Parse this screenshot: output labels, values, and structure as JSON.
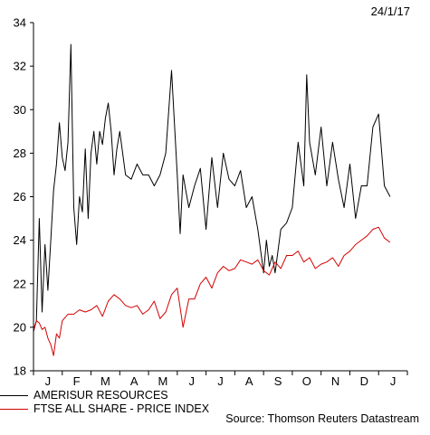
{
  "date_label": "24/1/17",
  "source": "Source: Thomson Reuters Datastream",
  "chart_data": {
    "type": "line",
    "ylim": [
      18,
      34
    ],
    "yticks": [
      18,
      20,
      22,
      24,
      26,
      28,
      30,
      32,
      34
    ],
    "x_months": [
      "J",
      "F",
      "M",
      "A",
      "M",
      "J",
      "J",
      "A",
      "S",
      "O",
      "N",
      "D",
      "J"
    ],
    "legend_placement": "bottom-left",
    "grid": false,
    "series": [
      {
        "name": "AMERISUR RESOURCES",
        "color": "#000000",
        "x": [
          0.0,
          0.1,
          0.2,
          0.3,
          0.4,
          0.5,
          0.6,
          0.7,
          0.8,
          0.9,
          1.0,
          1.1,
          1.2,
          1.3,
          1.4,
          1.5,
          1.6,
          1.7,
          1.8,
          1.9,
          2.0,
          2.1,
          2.2,
          2.3,
          2.4,
          2.5,
          2.6,
          2.7,
          2.8,
          2.9,
          3.0,
          3.2,
          3.4,
          3.6,
          3.8,
          4.0,
          4.2,
          4.4,
          4.6,
          4.8,
          5.0,
          5.1,
          5.2,
          5.4,
          5.6,
          5.8,
          6.0,
          6.2,
          6.4,
          6.6,
          6.8,
          7.0,
          7.2,
          7.4,
          7.6,
          7.8,
          8.0,
          8.1,
          8.2,
          8.3,
          8.4,
          8.6,
          8.8,
          9.0,
          9.2,
          9.4,
          9.5,
          9.6,
          9.8,
          10.0,
          10.2,
          10.4,
          10.6,
          10.8,
          11.0,
          11.2,
          11.4,
          11.6,
          11.8,
          12.0,
          12.2,
          12.4
        ],
        "values": [
          19.8,
          20.3,
          25.0,
          20.7,
          23.8,
          21.7,
          24.0,
          26.3,
          27.5,
          29.4,
          27.8,
          27.2,
          28.5,
          33.0,
          25.5,
          23.8,
          26.0,
          25.3,
          28.2,
          25.0,
          28.0,
          29.0,
          27.5,
          29.0,
          28.4,
          29.6,
          30.3,
          29.0,
          27.0,
          28.2,
          29.0,
          27.0,
          26.8,
          27.5,
          27.0,
          27.0,
          26.5,
          27.0,
          28.0,
          31.8,
          27.0,
          24.3,
          27.0,
          25.5,
          26.5,
          27.3,
          24.5,
          27.8,
          25.5,
          28.0,
          26.8,
          26.5,
          27.2,
          25.5,
          26.0,
          24.5,
          22.5,
          24.0,
          22.8,
          23.3,
          22.5,
          24.5,
          24.8,
          25.5,
          28.5,
          26.5,
          31.6,
          28.5,
          27.0,
          29.2,
          26.5,
          28.5,
          26.8,
          25.5,
          27.5,
          25.0,
          26.5,
          26.5,
          29.2,
          29.8,
          26.5,
          26.0
        ]
      },
      {
        "name": "FTSE ALL SHARE - PRICE INDEX",
        "color": "#d40000",
        "x": [
          0.0,
          0.1,
          0.2,
          0.3,
          0.4,
          0.5,
          0.6,
          0.7,
          0.8,
          0.9,
          1.0,
          1.2,
          1.4,
          1.6,
          1.8,
          2.0,
          2.2,
          2.4,
          2.6,
          2.8,
          3.0,
          3.2,
          3.4,
          3.6,
          3.8,
          4.0,
          4.2,
          4.4,
          4.6,
          4.8,
          5.0,
          5.2,
          5.4,
          5.6,
          5.8,
          6.0,
          6.2,
          6.4,
          6.6,
          6.8,
          7.0,
          7.2,
          7.4,
          7.6,
          7.8,
          8.0,
          8.2,
          8.4,
          8.6,
          8.8,
          9.0,
          9.2,
          9.4,
          9.6,
          9.8,
          10.0,
          10.2,
          10.4,
          10.6,
          10.8,
          11.0,
          11.2,
          11.4,
          11.6,
          11.8,
          12.0,
          12.2,
          12.4
        ],
        "values": [
          19.9,
          20.3,
          20.2,
          19.9,
          20.0,
          19.5,
          19.2,
          18.7,
          19.7,
          19.5,
          20.3,
          20.6,
          20.6,
          20.8,
          20.7,
          20.8,
          21.0,
          20.5,
          21.2,
          21.5,
          21.3,
          21.0,
          20.9,
          21.0,
          20.6,
          20.8,
          21.2,
          20.4,
          20.7,
          21.5,
          21.8,
          20.0,
          21.3,
          21.3,
          22.0,
          22.3,
          21.8,
          22.5,
          22.8,
          22.6,
          22.7,
          23.1,
          23.0,
          22.9,
          23.1,
          22.6,
          22.4,
          23.0,
          22.7,
          23.3,
          23.3,
          23.5,
          23.0,
          23.2,
          22.7,
          22.9,
          23.0,
          23.2,
          22.8,
          23.3,
          23.5,
          23.8,
          24.0,
          24.2,
          24.5,
          24.6,
          24.1,
          23.9
        ]
      }
    ]
  }
}
